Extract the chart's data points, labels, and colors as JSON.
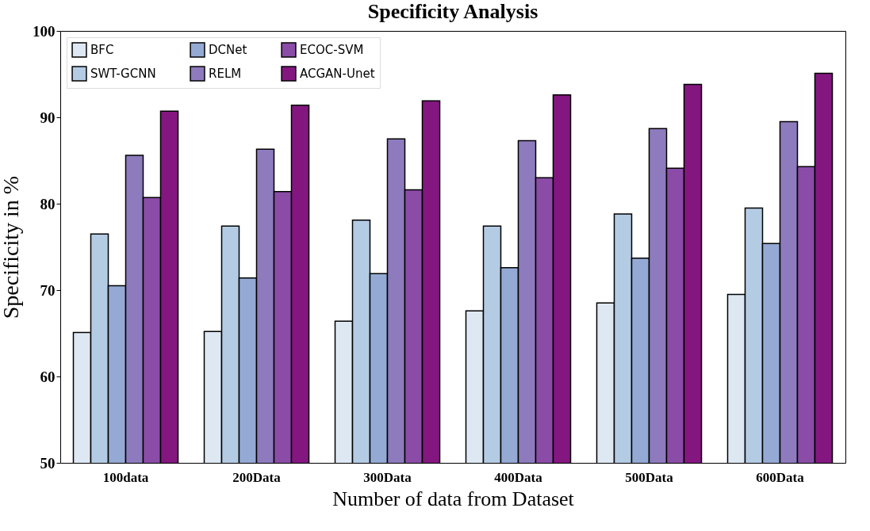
{
  "chart_data": {
    "type": "bar",
    "title": "Specificity Analysis",
    "xlabel": "Number of data from Dataset",
    "ylabel": "Specificity  in %",
    "categories": [
      "100data",
      "200Data",
      "300Data",
      "400Data",
      "500Data",
      "600Data"
    ],
    "series": [
      {
        "name": "BFC",
        "color": "#dde8f3",
        "values": [
          65.1,
          65.2,
          66.4,
          67.6,
          68.5,
          69.5
        ]
      },
      {
        "name": "SWT-GCNN",
        "color": "#b4cbe4",
        "values": [
          76.5,
          77.4,
          78.1,
          77.4,
          78.8,
          79.5
        ]
      },
      {
        "name": "DCNet",
        "color": "#94aad4",
        "values": [
          70.5,
          71.4,
          71.9,
          72.6,
          73.7,
          75.4
        ]
      },
      {
        "name": "RELM",
        "color": "#8e7bbd",
        "values": [
          85.6,
          86.3,
          87.5,
          87.3,
          88.7,
          89.5
        ]
      },
      {
        "name": "ECOC-SVM",
        "color": "#8a4ca6",
        "values": [
          80.7,
          81.4,
          81.6,
          83.0,
          84.1,
          84.3
        ]
      },
      {
        "name": "ACGAN-Unet",
        "color": "#83177f",
        "values": [
          90.7,
          91.4,
          91.9,
          92.6,
          93.8,
          95.1
        ]
      }
    ],
    "ylim": [
      50,
      100
    ],
    "yticks": [
      50,
      60,
      70,
      80,
      90,
      100
    ],
    "grid": false,
    "legend": "top left"
  }
}
